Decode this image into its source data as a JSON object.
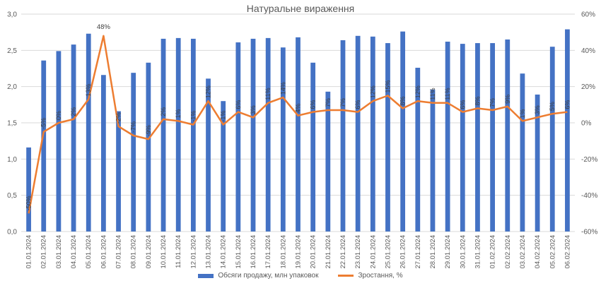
{
  "chart_data": {
    "type": "bar",
    "title": "Натуральне вираження",
    "categories": [
      "01.01.2024",
      "02.01.2024",
      "03.01.2024",
      "04.01.2024",
      "05.01.2024",
      "06.01.2024",
      "07.01.2024",
      "08.01.2024",
      "09.01.2024",
      "10.01.2024",
      "11.01.2024",
      "12.01.2024",
      "13.01.2024",
      "14.01.2024",
      "15.01.2024",
      "16.01.2024",
      "17.01.2024",
      "18.01.2024",
      "19.01.2024",
      "20.01.2024",
      "21.01.2024",
      "22.01.2024",
      "23.01.2024",
      "24.01.2024",
      "25.01.2024",
      "26.01.2024",
      "27.01.2024",
      "28.01.2024",
      "29.01.2024",
      "30.01.2024",
      "31.01.2024",
      "01.02.2024",
      "02.02.2024",
      "03.02.2024",
      "04.02.2024",
      "05.02.2024",
      "06.02.2024"
    ],
    "series": [
      {
        "name": "Обсяги продажу, млн упаковок",
        "type": "bar",
        "axis": "left",
        "color": "#4472c4",
        "values": [
          1.16,
          2.36,
          2.49,
          2.58,
          2.73,
          2.16,
          1.66,
          2.19,
          2.33,
          2.66,
          2.67,
          2.66,
          2.11,
          1.8,
          2.61,
          2.66,
          2.67,
          2.54,
          2.68,
          2.33,
          1.93,
          2.64,
          2.7,
          2.69,
          2.6,
          2.76,
          2.26,
          1.96,
          2.62,
          2.59,
          2.6,
          2.6,
          2.65,
          2.18,
          1.89,
          2.55,
          2.79
        ]
      },
      {
        "name": "Зростання, %",
        "type": "line",
        "axis": "right",
        "color": "#ed7d31",
        "values": [
          -50,
          -5,
          0,
          2,
          13,
          48,
          -2,
          -7,
          -9,
          2,
          1,
          -1,
          12,
          -1,
          6,
          3,
          11,
          14,
          4,
          6,
          7,
          7,
          6,
          12,
          15,
          8,
          12,
          11,
          11,
          6,
          8,
          7,
          9,
          1,
          3,
          5,
          6
        ],
        "data_labels": [
          "-50%",
          "-5%",
          "0%",
          "2%",
          "13%",
          "48%",
          "-2%",
          "-7%",
          "-9%",
          "2%",
          "1%",
          "-1%",
          "12%",
          "-1%",
          "6%",
          "3%",
          "11%",
          "14%",
          "4%",
          "6%",
          "7%",
          "7%",
          "6%",
          "12%",
          "15%",
          "8%",
          "12%",
          "11%",
          "11%",
          "6%",
          "8%",
          "7%",
          "9%",
          "1%",
          "3%",
          "5%",
          "6%"
        ]
      }
    ],
    "y_left": {
      "min": 0,
      "max": 3.0,
      "ticks": [
        "0,0",
        "0,5",
        "1,0",
        "1,5",
        "2,0",
        "2,5",
        "3,0"
      ]
    },
    "y_right": {
      "min": -60,
      "max": 60,
      "ticks": [
        "-60%",
        "-40%",
        "-20%",
        "0%",
        "20%",
        "40%",
        "60%"
      ]
    },
    "grid": true,
    "legend_position": "bottom"
  }
}
